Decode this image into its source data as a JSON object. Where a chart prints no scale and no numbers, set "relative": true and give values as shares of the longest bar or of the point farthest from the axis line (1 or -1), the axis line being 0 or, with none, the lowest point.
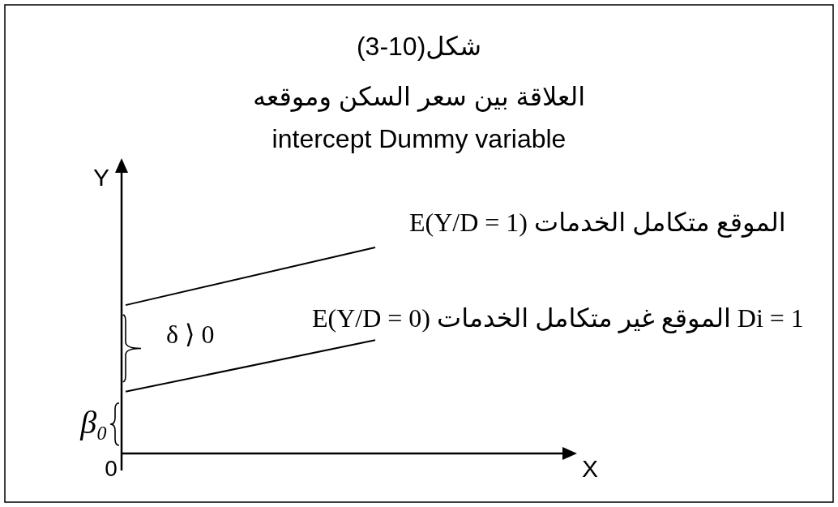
{
  "chart_data": {
    "type": "line",
    "title": "(3-10)شكل",
    "subtitle": "العلاقة بين سعر السكن وموقعه\nintercept Dummy variable",
    "xlabel": "X",
    "ylabel": "Y",
    "relative": true,
    "categories": [
      null,
      null
    ],
    "series": [
      {
        "name": "E(Y/D = 1) الموقع متكامل الخدمات",
        "color": "#000000",
        "values": [
          0.72,
          1
        ]
      },
      {
        "name": "E(Y/D = 0) الموقع غير متكامل الخدمات Di = 1",
        "color": "#000000",
        "values": [
          0.3,
          0.55
        ]
      }
    ],
    "annotations": [
      "δ ⟩ 0",
      "β₀",
      "0"
    ]
  }
}
